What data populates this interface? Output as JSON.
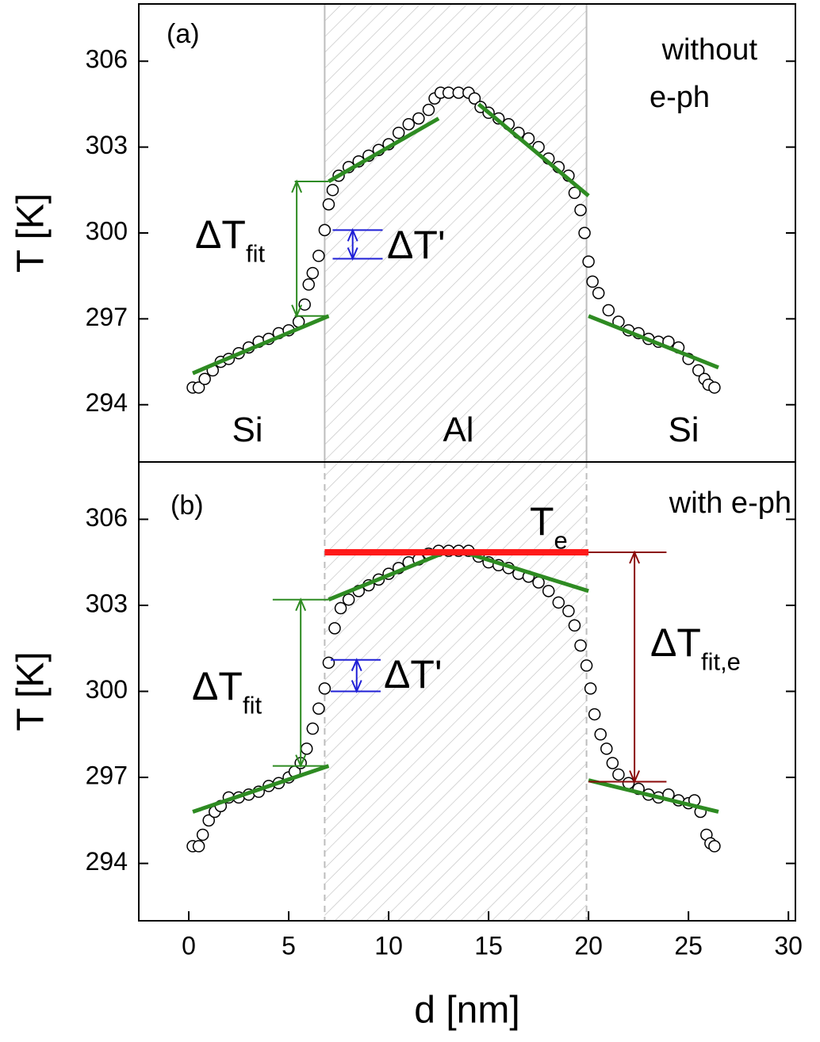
{
  "chart_data": [
    {
      "type": "scatter",
      "ylabel": "T [K]",
      "xlim": [
        -2.5,
        30.35
      ],
      "ylim": [
        292,
        308
      ],
      "yticks": [
        294,
        297,
        300,
        303,
        306
      ],
      "region": {
        "x": [
          6.8,
          19.9
        ],
        "border": "solid"
      },
      "x": [
        0.2,
        0.5,
        0.8,
        1.2,
        1.6,
        2.0,
        2.5,
        3.0,
        3.5,
        4.0,
        4.5,
        5.0,
        5.5,
        5.8,
        6.0,
        6.2,
        6.5,
        6.8,
        7.0,
        7.2,
        7.5,
        8.0,
        8.5,
        9.0,
        9.5,
        10.0,
        10.5,
        11.0,
        11.5,
        12.0,
        12.3,
        12.6,
        13.0,
        13.5,
        14.0,
        14.3,
        14.6,
        15.0,
        15.5,
        16.0,
        16.5,
        17.0,
        17.5,
        18.0,
        18.5,
        19.0,
        19.3,
        19.6,
        19.8,
        20.0,
        20.2,
        20.5,
        21.0,
        21.5,
        22.0,
        22.5,
        23.0,
        23.5,
        24.0,
        24.5,
        25.0,
        25.5,
        25.8,
        26.0,
        26.3
      ],
      "series": [
        {
          "color": "#000000",
          "values": [
            294.6,
            294.6,
            294.9,
            295.2,
            295.5,
            295.6,
            295.8,
            296.0,
            296.2,
            296.3,
            296.5,
            296.6,
            296.9,
            297.5,
            298.2,
            298.6,
            299.2,
            300.1,
            301.0,
            301.5,
            302.0,
            302.3,
            302.5,
            302.7,
            302.9,
            303.1,
            303.5,
            303.8,
            304.0,
            304.3,
            304.7,
            304.9,
            304.9,
            304.9,
            304.9,
            304.7,
            304.4,
            304.2,
            304.0,
            303.8,
            303.5,
            303.3,
            303.0,
            302.6,
            302.3,
            302.0,
            301.4,
            300.8,
            300.0,
            299.0,
            298.3,
            297.9,
            297.3,
            296.9,
            296.6,
            296.5,
            296.3,
            296.2,
            296.2,
            296.0,
            295.6,
            295.2,
            294.9,
            294.7,
            294.6
          ]
        }
      ],
      "fits": [
        {
          "color": "#2e8b22",
          "x": [
            0.2,
            7.0
          ],
          "y": [
            295.1,
            297.1
          ]
        },
        {
          "color": "#2e8b22",
          "x": [
            7.0,
            12.5
          ],
          "y": [
            301.8,
            304.0
          ]
        },
        {
          "color": "#2e8b22",
          "x": [
            14.5,
            20.0
          ],
          "y": [
            304.5,
            301.3
          ]
        },
        {
          "color": "#2e8b22",
          "x": [
            20.0,
            26.5
          ],
          "y": [
            297.1,
            295.3
          ]
        }
      ],
      "arrows": [
        {
          "color": "#2e8b22",
          "x": 5.4,
          "x_range": [
            5.3,
            7.0
          ],
          "y": [
            297.1,
            301.8
          ]
        },
        {
          "color": "#1f1fd6",
          "x": 8.2,
          "x_range": [
            7.2,
            9.7
          ],
          "y": [
            299.1,
            300.1
          ]
        }
      ],
      "annotations": [
        {
          "text": "(a)"
        },
        {
          "text": "without"
        },
        {
          "text": "e-ph"
        },
        {
          "text": "Si"
        },
        {
          "text": "Al"
        },
        {
          "text": "Si"
        },
        {
          "text": "ΔT",
          "sub": "fit",
          "color": "#2e8b22"
        },
        {
          "text": "ΔT'",
          "color": "#1f1fd6"
        }
      ]
    },
    {
      "type": "scatter",
      "ylabel": "T [K]",
      "xlabel": "d [nm]",
      "xlim": [
        -2.5,
        30.35
      ],
      "ylim": [
        292,
        308
      ],
      "yticks": [
        294,
        297,
        300,
        303,
        306
      ],
      "xticks": [
        0,
        5,
        10,
        15,
        20,
        25,
        30
      ],
      "region": {
        "x": [
          6.8,
          19.9
        ],
        "border": "dashed"
      },
      "x": [
        0.2,
        0.5,
        0.7,
        1.0,
        1.3,
        1.6,
        2.0,
        2.5,
        3.0,
        3.5,
        4.0,
        4.5,
        5.0,
        5.3,
        5.6,
        5.9,
        6.2,
        6.5,
        6.8,
        7.0,
        7.3,
        7.6,
        8.0,
        8.5,
        9.0,
        9.5,
        10.0,
        10.5,
        11.0,
        11.5,
        12.0,
        12.5,
        13.0,
        13.5,
        14.0,
        14.5,
        15.0,
        15.5,
        16.0,
        16.5,
        17.0,
        17.5,
        18.0,
        18.5,
        19.0,
        19.3,
        19.6,
        19.9,
        20.1,
        20.3,
        20.6,
        20.9,
        21.2,
        21.5,
        22.0,
        22.5,
        23.0,
        23.5,
        24.0,
        24.5,
        25.0,
        25.3,
        25.6,
        25.9,
        26.1,
        26.3
      ],
      "series": [
        {
          "color": "#000000",
          "values": [
            294.6,
            294.6,
            295.0,
            295.5,
            295.8,
            296.0,
            296.3,
            296.3,
            296.4,
            296.5,
            296.7,
            296.8,
            297.0,
            297.2,
            297.5,
            298.0,
            298.7,
            299.4,
            300.1,
            301.0,
            302.2,
            302.9,
            303.2,
            303.5,
            303.7,
            303.9,
            304.1,
            304.3,
            304.5,
            304.6,
            304.8,
            304.9,
            304.9,
            304.9,
            304.9,
            304.7,
            304.5,
            304.4,
            304.3,
            304.1,
            304.0,
            303.8,
            303.5,
            303.1,
            302.8,
            302.3,
            301.6,
            300.9,
            300.1,
            299.2,
            298.5,
            298.0,
            297.5,
            297.1,
            296.8,
            296.6,
            296.4,
            296.3,
            296.4,
            296.2,
            296.1,
            296.2,
            295.8,
            295.0,
            294.7,
            294.6
          ]
        }
      ],
      "fits": [
        {
          "color": "#2e8b22",
          "x": [
            0.2,
            7.0
          ],
          "y": [
            295.8,
            297.4
          ]
        },
        {
          "color": "#2e8b22",
          "x": [
            7.0,
            13.0
          ],
          "y": [
            303.2,
            304.9
          ]
        },
        {
          "color": "#2e8b22",
          "x": [
            14.0,
            20.0
          ],
          "y": [
            304.8,
            303.5
          ]
        },
        {
          "color": "#2e8b22",
          "x": [
            20.0,
            26.5
          ],
          "y": [
            296.9,
            295.8
          ]
        },
        {
          "color": "#ff1a1a",
          "x": [
            6.8,
            20.0
          ],
          "y": [
            304.85,
            304.85
          ]
        }
      ],
      "arrows": [
        {
          "color": "#2e8b22",
          "x": 5.6,
          "x_range": [
            4.2,
            7.0
          ],
          "y": [
            297.4,
            303.2
          ]
        },
        {
          "color": "#1f1fd6",
          "x": 8.4,
          "x_range": [
            7.1,
            9.6
          ],
          "y": [
            300.0,
            301.1
          ]
        },
        {
          "color": "#8b0a0a",
          "x": 22.3,
          "x_range": [
            20.0,
            23.9
          ],
          "y": [
            296.85,
            304.85
          ]
        }
      ],
      "annotations": [
        {
          "text": "(b)"
        },
        {
          "text": "with e-ph"
        },
        {
          "text": "T",
          "sub": "e",
          "color": "#ff1a1a"
        },
        {
          "text": "ΔT",
          "sub": "fit",
          "color": "#2e8b22"
        },
        {
          "text": "ΔT'",
          "color": "#1f1fd6"
        },
        {
          "text": "ΔT",
          "sub": "fit,e",
          "color": "#8b0a0a"
        }
      ]
    }
  ]
}
